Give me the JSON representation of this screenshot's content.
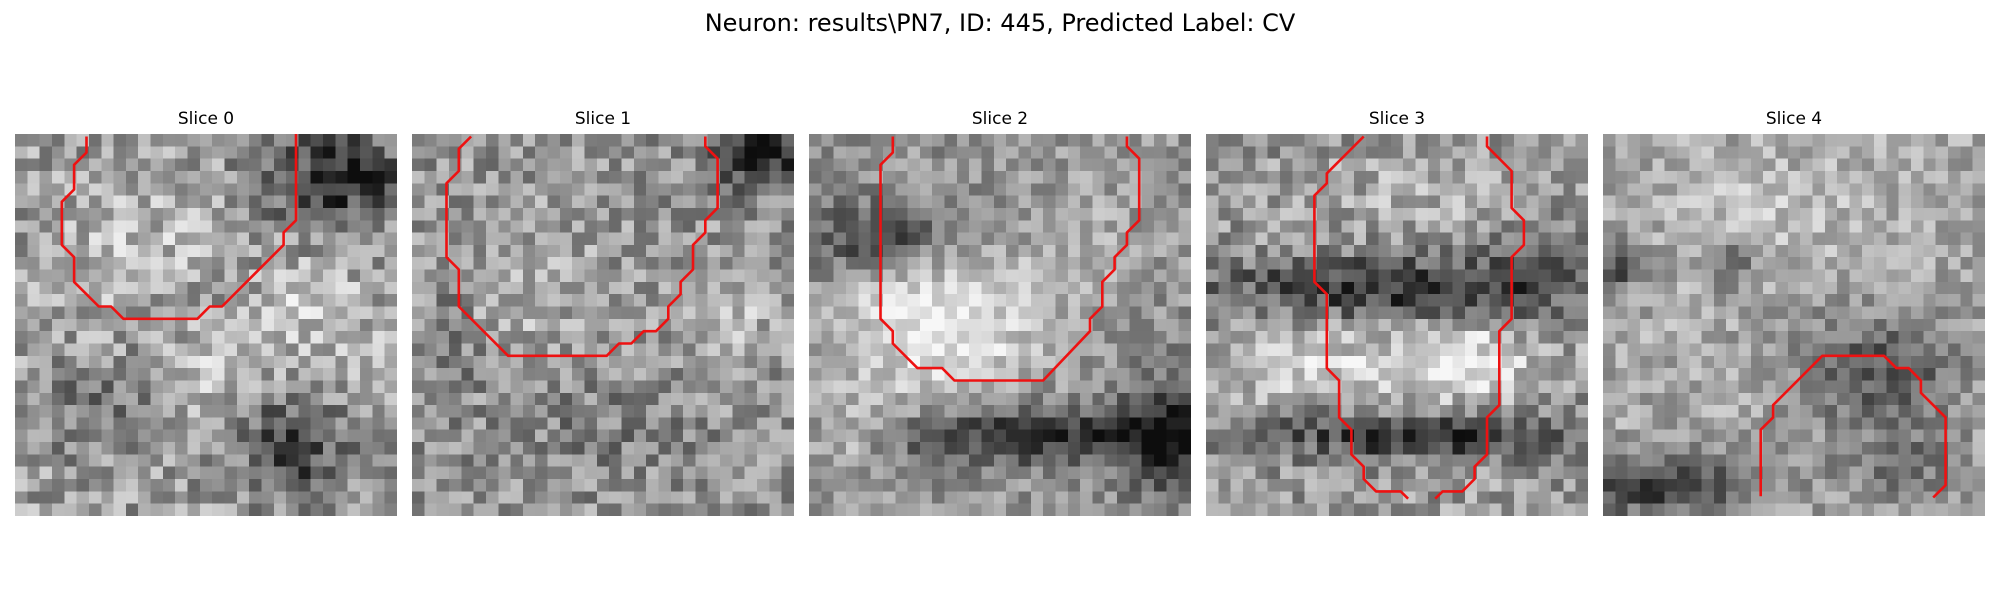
{
  "figure": {
    "suptitle": "Neuron: results\\PN7, ID: 445, Predicted Label: CV"
  },
  "panels": [
    {
      "title": "Slice 0"
    },
    {
      "title": "Slice 1"
    },
    {
      "title": "Slice 2"
    },
    {
      "title": "Slice 3"
    },
    {
      "title": "Slice 4"
    }
  ],
  "colors": {
    "contour": "#ee1111",
    "background": "#ffffff"
  }
}
